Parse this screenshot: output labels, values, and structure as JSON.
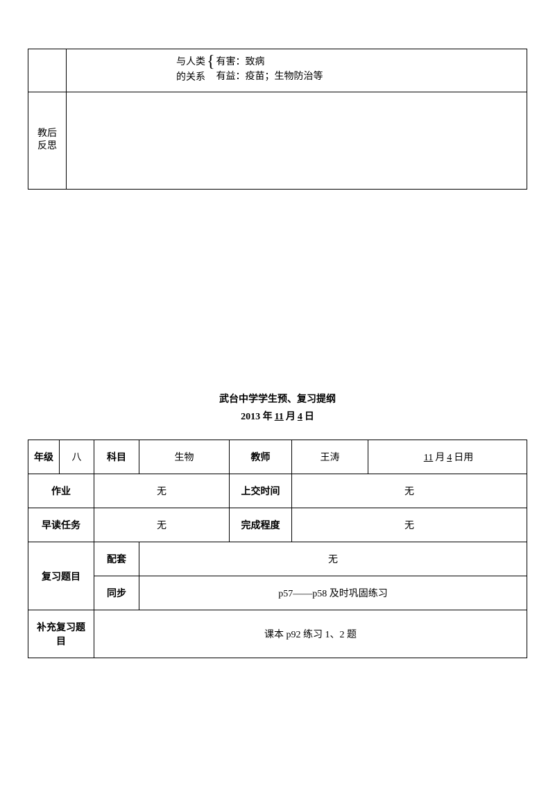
{
  "table1": {
    "brace_label1": "与人类",
    "brace_label2": "的关系",
    "brace_line1": "有害：致病",
    "brace_line2": "有益：疫苗；生物防治等",
    "reflection_label": "教后反思"
  },
  "title": {
    "line1": "武台中学学生预、复习提纲",
    "year": "2013 年",
    "month": "11",
    "month_label": "月",
    "day": "4",
    "day_label": "日"
  },
  "table2": {
    "grade_label": "年级",
    "grade_value": "八",
    "subject_label": "科目",
    "subject_value": "生物",
    "teacher_label": "教师",
    "teacher_value": "王涛",
    "usage_month": "11",
    "usage_month_label": "月",
    "usage_day": "4",
    "usage_day_label": "日用",
    "homework_label": "作业",
    "homework_value": "无",
    "submit_time_label": "上交时间",
    "submit_time_value": "无",
    "morning_label": "早读任务",
    "morning_value": "无",
    "completion_label": "完成程度",
    "completion_value": "无",
    "review_label": "复习题目",
    "matching_label": "配套",
    "matching_value": "无",
    "sync_label": "同步",
    "sync_value": "p57——p58 及时巩固练习",
    "supplement_label": "补充复习题目",
    "supplement_value": "课本 p92 练习 1、2 题"
  }
}
